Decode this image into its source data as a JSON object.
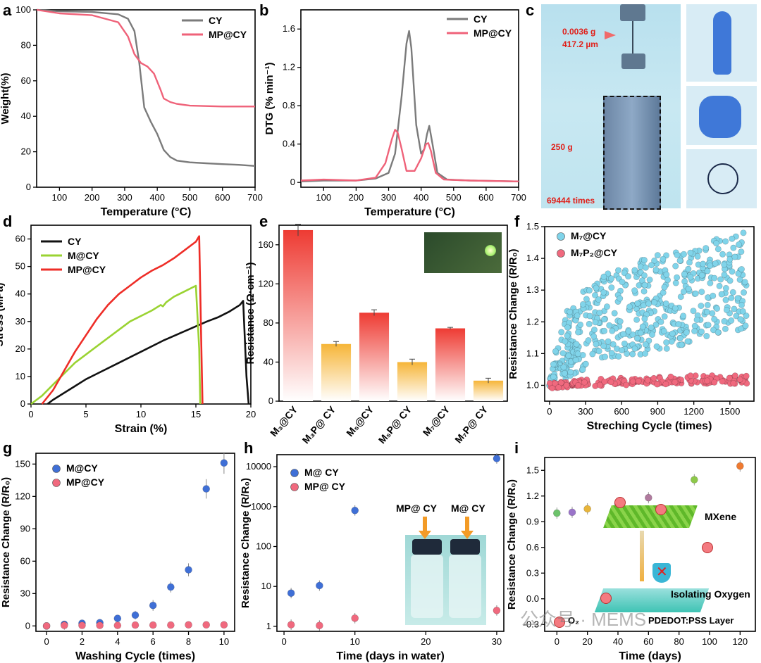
{
  "panel_letters": [
    "a",
    "b",
    "c",
    "d",
    "e",
    "f",
    "g",
    "h",
    "i"
  ],
  "colors": {
    "cy_gray": "#7b7b7b",
    "mp_pink": "#ef6279",
    "cy_black": "#111111",
    "m_green": "#9ad332",
    "mp_red": "#ee2d27",
    "m_blue": "#3f6fd6",
    "mp_pinkdot": "#f0697e",
    "cyan": "#80d4ea",
    "bar_red": "#ee3b33",
    "bar_orange": "#f6b538"
  },
  "chart_data": [
    {
      "id": "a",
      "type": "line",
      "xlabel": "Temperature (°C)",
      "ylabel": "Weight(%)",
      "xlim": [
        30,
        700
      ],
      "ylim": [
        0,
        100
      ],
      "xticks": [
        100,
        200,
        300,
        400,
        500,
        600,
        700
      ],
      "yticks": [
        0,
        20,
        40,
        60,
        80,
        100
      ],
      "series": [
        {
          "name": "CY",
          "color": "#7b7b7b",
          "x": [
            30,
            100,
            200,
            280,
            310,
            330,
            345,
            360,
            380,
            400,
            420,
            440,
            460,
            500,
            550,
            600,
            650,
            700
          ],
          "y": [
            100,
            99.2,
            98.8,
            97.5,
            95,
            88,
            70,
            45,
            37,
            30,
            21,
            17,
            15,
            14,
            13.5,
            13,
            12.6,
            12
          ]
        },
        {
          "name": "MP@CY",
          "color": "#ef6279",
          "x": [
            30,
            100,
            200,
            280,
            310,
            330,
            350,
            370,
            390,
            410,
            420,
            440,
            460,
            500,
            600,
            700
          ],
          "y": [
            100,
            98,
            97,
            93,
            85,
            75,
            70,
            68,
            64,
            55,
            50,
            48,
            47,
            46,
            45.5,
            45.5
          ]
        }
      ]
    },
    {
      "id": "b",
      "type": "line",
      "xlabel": "Temperature (°C)",
      "ylabel": "DTG (% min⁻¹)",
      "xlim": [
        30,
        700
      ],
      "ylim": [
        -0.05,
        1.8
      ],
      "xticks": [
        100,
        200,
        300,
        400,
        500,
        600,
        700
      ],
      "yticks": [
        0.0,
        0.4,
        0.8,
        1.2,
        1.6
      ],
      "series": [
        {
          "name": "CY",
          "color": "#7b7b7b",
          "x": [
            30,
            100,
            200,
            260,
            300,
            320,
            340,
            355,
            363,
            370,
            385,
            400,
            410,
            418,
            425,
            435,
            450,
            480,
            550,
            700
          ],
          "y": [
            0.01,
            0.02,
            0.02,
            0.04,
            0.1,
            0.3,
            0.9,
            1.45,
            1.58,
            1.4,
            0.6,
            0.3,
            0.35,
            0.5,
            0.59,
            0.4,
            0.1,
            0.03,
            0.02,
            0.01
          ]
        },
        {
          "name": "MP@CY",
          "color": "#ef6279",
          "x": [
            30,
            100,
            200,
            260,
            290,
            310,
            320,
            328,
            340,
            355,
            380,
            400,
            415,
            422,
            430,
            445,
            470,
            550,
            700
          ],
          "y": [
            0.02,
            0.03,
            0.02,
            0.05,
            0.2,
            0.45,
            0.55,
            0.52,
            0.35,
            0.12,
            0.12,
            0.25,
            0.4,
            0.41,
            0.33,
            0.1,
            0.03,
            0.02,
            0.01
          ]
        }
      ]
    },
    {
      "id": "d",
      "type": "line",
      "xlabel": "Strain (%)",
      "ylabel": "Stress (MPa)",
      "xlim": [
        0,
        20
      ],
      "ylim": [
        0,
        65
      ],
      "xticks": [
        0,
        5,
        10,
        15,
        20
      ],
      "yticks": [
        0,
        10,
        20,
        30,
        40,
        50,
        60
      ],
      "series": [
        {
          "name": "CY",
          "color": "#111111",
          "x": [
            1.5,
            2,
            3,
            4,
            5,
            6,
            8,
            10,
            12,
            14,
            16,
            17,
            18,
            19,
            19.3,
            19.6,
            19.8
          ],
          "y": [
            0,
            1.5,
            4,
            6.5,
            9,
            11,
            15,
            19,
            23,
            26.5,
            30,
            31.5,
            33.5,
            36,
            37.5,
            10,
            0
          ]
        },
        {
          "name": "M@CY",
          "color": "#9ad332",
          "x": [
            0,
            1,
            2,
            3,
            4,
            5,
            7,
            9,
            11,
            11.8,
            12,
            12.3,
            13,
            14,
            15,
            15.3,
            15.4
          ],
          "y": [
            0,
            3,
            7,
            11,
            15,
            18,
            24,
            30,
            34,
            36,
            35.5,
            37,
            39,
            41,
            43,
            20,
            0
          ]
        },
        {
          "name": "MP@CY",
          "color": "#ee2d27",
          "x": [
            1,
            2,
            3,
            4,
            5,
            6,
            7,
            8,
            9,
            10,
            11,
            12,
            13,
            14,
            15,
            15.3,
            15.5,
            15.6
          ],
          "y": [
            0,
            5,
            12,
            19,
            25,
            31,
            36,
            40,
            43,
            46,
            48.5,
            50.5,
            53,
            56,
            59,
            61,
            20,
            0
          ]
        }
      ]
    },
    {
      "id": "e",
      "type": "bar",
      "ylabel": "Resistance (Ω·cm⁻¹)",
      "ylim": [
        0,
        180
      ],
      "yticks": [
        0,
        40,
        80,
        120,
        160
      ],
      "categories": [
        "M₃@CY",
        "M₃P@ CY",
        "M₅@CY",
        "M₅P@ CY",
        "M₇@CY",
        "M₇P@ CY"
      ],
      "values": [
        175,
        58.5,
        90.5,
        40,
        74.5,
        21
      ],
      "errors": [
        6,
        2.5,
        3,
        3,
        1,
        2.5
      ],
      "colors": [
        "#ee3b33",
        "#f6b538",
        "#ee3b33",
        "#f6b538",
        "#ee3b33",
        "#f6b538"
      ]
    },
    {
      "id": "f",
      "type": "scatter",
      "xlabel": "Streching Cycle (times)",
      "ylabel": "Resistance Change (R/R₀)",
      "xlim": [
        -40,
        1700
      ],
      "ylim": [
        0.95,
        1.5
      ],
      "xticks": [
        0,
        300,
        600,
        900,
        1200,
        1500
      ],
      "yticks": [
        1.0,
        1.1,
        1.2,
        1.3,
        1.4,
        1.5
      ],
      "series": [
        {
          "name": "M₇@CY",
          "color": "#80d4ea",
          "x": [
            0,
            50,
            100,
            150,
            200,
            300,
            400,
            500,
            600,
            700,
            800,
            900,
            1000,
            1100,
            1200,
            1300,
            1400,
            1500,
            1600,
            1650
          ],
          "y": [
            1.0,
            1.06,
            1.1,
            1.13,
            1.15,
            1.18,
            1.2,
            1.22,
            1.23,
            1.24,
            1.25,
            1.26,
            1.27,
            1.28,
            1.29,
            1.3,
            1.31,
            1.32,
            1.33,
            1.34
          ],
          "spread": [
            0.01,
            0.06,
            0.1,
            0.12,
            0.13,
            0.14,
            0.15,
            0.15,
            0.16,
            0.16,
            0.17,
            0.17,
            0.17,
            0.17,
            0.17,
            0.17,
            0.17,
            0.17,
            0.17,
            0.17
          ]
        },
        {
          "name": "M₇P₂@CY",
          "color": "#f0697e",
          "x": [
            0,
            200,
            400,
            600,
            800,
            1000,
            1200,
            1400,
            1600,
            1650
          ],
          "y": [
            1.0,
            1.005,
            1.01,
            1.012,
            1.014,
            1.016,
            1.018,
            1.018,
            1.018,
            1.018
          ],
          "spread": [
            0.01,
            0.01,
            0.012,
            0.012,
            0.012,
            0.013,
            0.013,
            0.013,
            0.013,
            0.013
          ]
        }
      ]
    },
    {
      "id": "g",
      "type": "scatter",
      "xlabel": "Washing Cycle (times)",
      "ylabel": "Resistance Change (R/R₀)",
      "xlim": [
        -0.6,
        10.6
      ],
      "ylim": [
        -5,
        160
      ],
      "xticks": [
        0,
        2,
        4,
        6,
        8,
        10
      ],
      "yticks": [
        0,
        30,
        60,
        90,
        120,
        150
      ],
      "series": [
        {
          "name": "M@CY",
          "color": "#3f6fd6",
          "x": [
            0,
            1,
            2,
            3,
            4,
            5,
            6,
            7,
            8,
            9,
            10
          ],
          "y": [
            0,
            1.5,
            2.5,
            3,
            7,
            10,
            19,
            36,
            52,
            127,
            151
          ],
          "err": [
            1,
            1,
            1,
            2,
            2,
            4,
            5,
            5,
            6,
            9,
            10
          ]
        },
        {
          "name": "MP@CY",
          "color": "#f0697e",
          "x": [
            0,
            1,
            2,
            3,
            4,
            5,
            6,
            7,
            8,
            9,
            10
          ],
          "y": [
            0,
            0.5,
            0.5,
            0.5,
            0.5,
            0.8,
            0.8,
            0.8,
            1,
            1,
            1
          ],
          "err": [
            1,
            4,
            3,
            3,
            2,
            2,
            2,
            2,
            2,
            2,
            2
          ]
        }
      ]
    },
    {
      "id": "h",
      "type": "scatter",
      "yscale": "log",
      "xlabel": "Time (days in water)",
      "ylabel": "Resistance Change (R/R₀)",
      "xlim": [
        -1,
        31
      ],
      "ylim": [
        0.75,
        20000
      ],
      "xticks": [
        0,
        10,
        20,
        30
      ],
      "yticks": [
        1,
        10,
        100,
        1000,
        10000
      ],
      "series": [
        {
          "name": "M@ CY",
          "color": "#3f6fd6",
          "x": [
            1,
            5,
            10,
            30
          ],
          "y": [
            6.8,
            10.5,
            800,
            16000
          ]
        },
        {
          "name": "MP@ CY",
          "color": "#f0697e",
          "x": [
            1,
            5,
            10,
            30
          ],
          "y": [
            1.1,
            1.05,
            1.6,
            2.5
          ]
        }
      ]
    },
    {
      "id": "i",
      "type": "scatter",
      "xlabel": "Time (days)",
      "ylabel": "Resistance Change (R/R₀)",
      "xlim": [
        -8,
        130
      ],
      "ylim": [
        -0.38,
        1.65
      ],
      "xticks": [
        0,
        20,
        40,
        60,
        80,
        100,
        120
      ],
      "yticks": [
        -0.3,
        0.0,
        0.3,
        0.6,
        0.9,
        1.2,
        1.5
      ],
      "series": [
        {
          "name": "points",
          "x": [
            0,
            10,
            20,
            40,
            60,
            90,
            120
          ],
          "y": [
            1.0,
            1.01,
            1.05,
            1.11,
            1.18,
            1.39,
            1.55
          ],
          "colors": [
            "#6cc36b",
            "#9a74c9",
            "#e8b53a",
            "#5ec8d8",
            "#b07a9e",
            "#8dc84a",
            "#ef7a30"
          ]
        }
      ]
    }
  ],
  "photo_c": {
    "weight_text": "0.0036 g",
    "thickness_text": "417.2 µm",
    "load_text": "250 g",
    "times_text": "69444 times"
  },
  "photo_e_alt": "LED circuit",
  "photo_h": {
    "label_left": "MP@ CY",
    "label_right": "M@ CY"
  },
  "diagram_i": {
    "mxene_label": "MXene",
    "isolating_label": "Isolating Oxygen",
    "pedot_label": "PDEDOT:PSS Layer",
    "o2_label": "O₂"
  },
  "watermark": "公众号 · MEMS"
}
